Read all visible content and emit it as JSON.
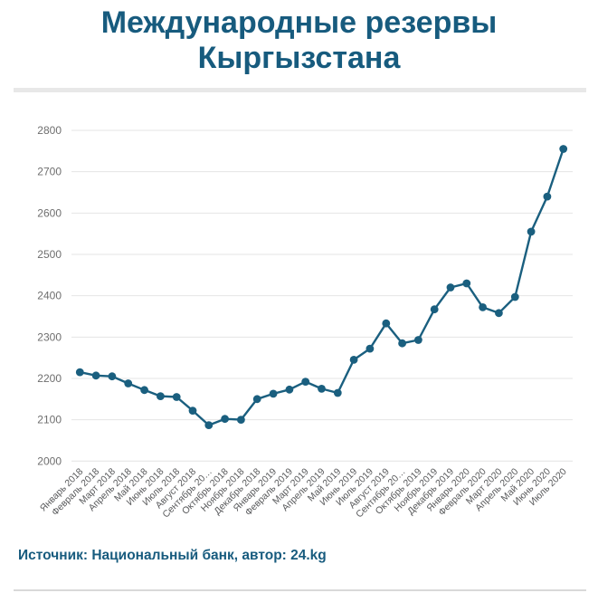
{
  "header": {
    "title_line1": "Международные резервы",
    "title_line2": "Кыргызстана"
  },
  "footer": {
    "source_text": "Источник: Национальный банк, автор: 24.kg"
  },
  "colors": {
    "accent": "#175b7e",
    "line": "#1a5f7f",
    "grid": "#e4e4e4",
    "y_tick_label": "#6e6e6e",
    "x_tick_label": "#58595b",
    "divider": "#e8e8e8",
    "bottom_rule": "#d9d9d9",
    "background": "#ffffff"
  },
  "chart_data": {
    "type": "line",
    "title": "Международные резервы Кыргызстана",
    "categories": [
      "Январь 2018",
      "Февраль 2018",
      "Март 2018",
      "Апрель 2018",
      "Май 2018",
      "Июнь 2018",
      "Июль 2018",
      "Август 2018",
      "Сентябрь 2018",
      "Октябрь 2018",
      "Ноябрь 2018",
      "Декабрь 2018",
      "Январь 2019",
      "Февраль 2019",
      "Март 2019",
      "Апрель 2019",
      "Май 2019",
      "Июнь 2019",
      "Июль 2019",
      "Август 2019",
      "Сентябрь 2019",
      "Октябрь 2019",
      "Ноябрь 2019",
      "Декабрь 2019",
      "Январь 2020",
      "Февраль 2020",
      "Март 2020",
      "Апрель 2020",
      "Май 2020",
      "Июнь 2020",
      "Июль 2020"
    ],
    "tick_labels": [
      "Январь 2018",
      "Февраль 2018",
      "Март 2018",
      "Апрель 2018",
      "Май 2018",
      "Июнь 2018",
      "Июль 2018",
      "Август 2018",
      "Сентябрь 20…",
      "Октябрь 2018",
      "Ноябрь 2018",
      "Декабрь 2018",
      "Январь 2019",
      "Февраль 2019",
      "Март 2019",
      "Апрель 2019",
      "Май 2019",
      "Июнь 2019",
      "Июль 2019",
      "Август 2019",
      "Сентябрь 20…",
      "Октябрь 2019",
      "Ноябрь 2019",
      "Декабрь 2019",
      "Январь 2020",
      "Февраль 2020",
      "Март 2020",
      "Апрель 2020",
      "Май 2020",
      "Июнь 2020",
      "Июль 2020"
    ],
    "values": [
      2215,
      2207,
      2205,
      2188,
      2172,
      2157,
      2155,
      2122,
      2087,
      2102,
      2100,
      2150,
      2163,
      2173,
      2192,
      2175,
      2165,
      2245,
      2272,
      2333,
      2285,
      2293,
      2367,
      2420,
      2430,
      2372,
      2358,
      2397,
      2555,
      2640,
      2755
    ],
    "xlabel": "",
    "ylabel": "",
    "ylim": [
      2000,
      2800
    ],
    "y_ticks": [
      2000,
      2100,
      2200,
      2300,
      2400,
      2500,
      2600,
      2700,
      2800
    ],
    "grid": true,
    "legend": false,
    "marker": "circle"
  }
}
